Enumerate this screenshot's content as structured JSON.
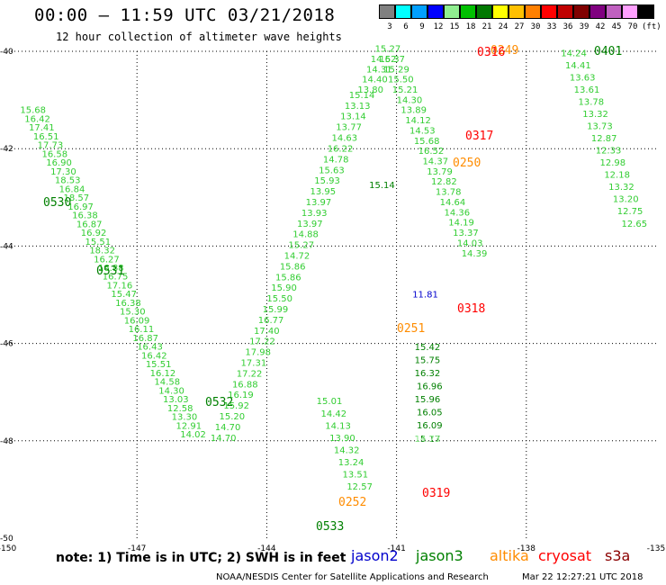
{
  "header": {
    "title": "00:00 – 11:59 UTC 03/21/2018",
    "subtitle": "12 hour collection of altimeter wave heights"
  },
  "legend": {
    "unit": "(ft)",
    "bins": [
      {
        "label": "3",
        "color": "#808080"
      },
      {
        "label": "6",
        "color": "#00ffff"
      },
      {
        "label": "9",
        "color": "#00a0ff"
      },
      {
        "label": "12",
        "color": "#0000ff"
      },
      {
        "label": "15",
        "color": "#90ee90"
      },
      {
        "label": "18",
        "color": "#00c000"
      },
      {
        "label": "21",
        "color": "#007800"
      },
      {
        "label": "24",
        "color": "#ffff00"
      },
      {
        "label": "27",
        "color": "#ffc000"
      },
      {
        "label": "30",
        "color": "#ff8000"
      },
      {
        "label": "33",
        "color": "#ff0000"
      },
      {
        "label": "36",
        "color": "#c00000"
      },
      {
        "label": "39",
        "color": "#800000"
      },
      {
        "label": "42",
        "color": "#800080"
      },
      {
        "label": "45",
        "color": "#c060c0"
      },
      {
        "label": "70",
        "color": "#ffa0ff"
      },
      {
        "label": "",
        "color": "#000000"
      }
    ]
  },
  "map": {
    "lat_ticks": [
      "-40",
      "-42",
      "-44",
      "-46",
      "-48",
      "-50"
    ],
    "lon_ticks": [
      "-150",
      "-147",
      "-144",
      "-141",
      "-138",
      "-135"
    ],
    "lon_range": [
      -150,
      -135
    ],
    "lat_range": [
      -50,
      -40
    ]
  },
  "tracks": [
    {
      "name": "left-descending",
      "color": "#32cd32",
      "points": [
        [
          "15.68",
          -149.7,
          -41.27
        ],
        [
          "16.42",
          -149.6,
          -41.45
        ],
        [
          "17.41",
          -149.5,
          -41.63
        ],
        [
          "16.51",
          -149.4,
          -41.81
        ],
        [
          "17.73",
          -149.3,
          -41.99
        ],
        [
          "16.58",
          -149.2,
          -42.17
        ],
        [
          "16.90",
          -149.1,
          -42.35
        ],
        [
          "17.30",
          -149.0,
          -42.53
        ],
        [
          "18.53",
          -148.9,
          -42.71
        ],
        [
          "16.84",
          -148.8,
          -42.89
        ],
        [
          "18.57",
          -148.7,
          -43.07
        ],
        [
          "16.97",
          -148.6,
          -43.25
        ],
        [
          "16.38",
          -148.5,
          -43.43
        ],
        [
          "16.87",
          -148.4,
          -43.61
        ],
        [
          "16.92",
          -148.3,
          -43.79
        ],
        [
          "15.51",
          -148.2,
          -43.97
        ],
        [
          "18.32",
          -148.1,
          -44.15
        ],
        [
          "16.27",
          -148.0,
          -44.33
        ],
        [
          "16.88",
          -147.9,
          -44.51
        ],
        [
          "16.75",
          -147.8,
          -44.69
        ],
        [
          "17.16",
          -147.7,
          -44.87
        ],
        [
          "15.47",
          -147.6,
          -45.05
        ],
        [
          "16.38",
          -147.5,
          -45.23
        ],
        [
          "15.30",
          -147.4,
          -45.41
        ],
        [
          "16.09",
          -147.3,
          -45.59
        ],
        [
          "16.11",
          -147.2,
          -45.77
        ],
        [
          "16.87",
          -147.1,
          -45.95
        ],
        [
          "16.43",
          -147.0,
          -46.13
        ],
        [
          "16.42",
          -146.9,
          -46.31
        ],
        [
          "15.51",
          -146.8,
          -46.49
        ],
        [
          "16.12",
          -146.7,
          -46.67
        ],
        [
          "14.58",
          -146.6,
          -46.85
        ],
        [
          "14.30",
          -146.5,
          -47.03
        ],
        [
          "13.03",
          -146.4,
          -47.21
        ],
        [
          "12.58",
          -146.3,
          -47.39
        ],
        [
          "13.30",
          -146.2,
          -47.57
        ],
        [
          "12.91",
          -146.1,
          -47.75
        ],
        [
          "14.02",
          -146.0,
          -47.93
        ]
      ]
    },
    {
      "name": "center-ascending",
      "color": "#32cd32",
      "points": [
        [
          "14.70",
          -145.3,
          -48.0
        ],
        [
          "14.70",
          -145.2,
          -47.78
        ],
        [
          "15.20",
          -145.1,
          -47.56
        ],
        [
          "15.92",
          -145.0,
          -47.34
        ],
        [
          "16.19",
          -144.9,
          -47.12
        ],
        [
          "16.88",
          -144.8,
          -46.9
        ],
        [
          "17.22",
          -144.7,
          -46.68
        ],
        [
          "17.31",
          -144.6,
          -46.46
        ],
        [
          "17.98",
          -144.5,
          -46.24
        ],
        [
          "17.22",
          -144.4,
          -46.02
        ],
        [
          "17.40",
          -144.3,
          -45.8
        ],
        [
          "16.77",
          -144.2,
          -45.58
        ],
        [
          "15.99",
          -144.1,
          -45.36
        ],
        [
          "15.50",
          -144.0,
          -45.14
        ],
        [
          "15.90",
          -143.9,
          -44.92
        ],
        [
          "15.86",
          -143.8,
          -44.7
        ],
        [
          "15.86",
          -143.7,
          -44.48
        ],
        [
          "14.72",
          -143.6,
          -44.26
        ],
        [
          "15.27",
          -143.5,
          -44.04
        ],
        [
          "14.88",
          -143.4,
          -43.82
        ],
        [
          "13.97",
          -143.3,
          -43.6
        ],
        [
          "13.93",
          -143.2,
          -43.38
        ],
        [
          "13.97",
          -143.1,
          -43.16
        ],
        [
          "13.95",
          -143.0,
          -42.94
        ],
        [
          "15.93",
          -142.9,
          -42.72
        ],
        [
          "15.63",
          -142.8,
          -42.5
        ],
        [
          "14.78",
          -142.7,
          -42.28
        ],
        [
          "16.22",
          -142.6,
          -42.06
        ],
        [
          "14.63",
          -142.5,
          -41.84
        ],
        [
          "13.77",
          -142.4,
          -41.62
        ],
        [
          "13.14",
          -142.3,
          -41.4
        ],
        [
          "13.13",
          -142.2,
          -41.18
        ],
        [
          "15.14",
          -142.1,
          -40.96
        ]
      ]
    },
    {
      "name": "right-near-track",
      "color": "#32cd32",
      "points": [
        [
          "13.80",
          -141.9,
          -40.85
        ],
        [
          "14.40",
          -141.8,
          -40.64
        ],
        [
          "14.31",
          -141.7,
          -40.43
        ],
        [
          "14.62",
          -141.6,
          -40.22
        ],
        [
          "15.27",
          -141.5,
          -40.01
        ],
        [
          "15.37",
          -141.4,
          -40.22
        ],
        [
          "15.29",
          -141.3,
          -40.43
        ],
        [
          "15.50",
          -141.2,
          -40.64
        ],
        [
          "15.21",
          -141.1,
          -40.85
        ],
        [
          "14.30",
          -141.0,
          -41.06
        ],
        [
          "13.89",
          -140.9,
          -41.27
        ],
        [
          "14.12",
          -140.8,
          -41.48
        ],
        [
          "14.53",
          -140.7,
          -41.69
        ],
        [
          "15.68",
          -140.6,
          -41.9
        ],
        [
          "16.52",
          -140.5,
          -42.11
        ],
        [
          "14.37",
          -140.4,
          -42.32
        ],
        [
          "13.79",
          -140.3,
          -42.53
        ],
        [
          "12.82",
          -140.2,
          -42.74
        ],
        [
          "13.78",
          -140.1,
          -42.95
        ],
        [
          "14.64",
          -140.0,
          -43.16
        ],
        [
          "14.36",
          -139.9,
          -43.37
        ],
        [
          "14.19",
          -139.8,
          -43.58
        ],
        [
          "13.37",
          -139.7,
          -43.79
        ],
        [
          "14.03",
          -139.6,
          -44.0
        ],
        [
          "14.39",
          -139.5,
          -44.21
        ]
      ]
    },
    {
      "name": "right-lower",
      "color": "#32cd32",
      "points": [
        [
          "15.01",
          -142.85,
          -47.25
        ],
        [
          "14.42",
          -142.75,
          -47.5
        ],
        [
          "14.13",
          -142.65,
          -47.75
        ],
        [
          "13.90",
          -142.55,
          -48.0
        ],
        [
          "14.32",
          -142.45,
          -48.25
        ],
        [
          "13.24",
          -142.35,
          -48.5
        ],
        [
          "13.51",
          -142.25,
          -48.75
        ],
        [
          "12.57",
          -142.15,
          -49.0
        ]
      ]
    },
    {
      "name": "right-upper",
      "color": "#32cd32",
      "points": [
        [
          "14.24",
          -137.2,
          -40.1
        ],
        [
          "14.41",
          -137.1,
          -40.35
        ],
        [
          "13.63",
          -137.0,
          -40.6
        ],
        [
          "13.61",
          -136.9,
          -40.85
        ],
        [
          "13.78",
          -136.8,
          -41.1
        ],
        [
          "13.32",
          -136.7,
          -41.35
        ],
        [
          "13.73",
          -136.6,
          -41.6
        ],
        [
          "12.87",
          -136.5,
          -41.85
        ],
        [
          "12.33",
          -136.4,
          -42.1
        ],
        [
          "12.98",
          -136.3,
          -42.35
        ],
        [
          "12.18",
          -136.2,
          -42.6
        ],
        [
          "13.32",
          -136.1,
          -42.85
        ],
        [
          "13.20",
          -136.0,
          -43.1
        ],
        [
          "12.75",
          -135.9,
          -43.35
        ],
        [
          "12.65",
          -135.8,
          -43.6
        ]
      ]
    }
  ],
  "highlight_values": [
    {
      "text": "11.81",
      "color": "#0000cc"
    },
    {
      "text": "15.75",
      "color": "#008000"
    },
    {
      "text": "15.42",
      "color": "#008000"
    },
    {
      "text": "16.32",
      "color": "#008000"
    },
    {
      "text": "16.96",
      "color": "#008000"
    },
    {
      "text": "15.96",
      "color": "#008000"
    },
    {
      "text": "16.05",
      "color": "#008000"
    },
    {
      "text": "16.09",
      "color": "#008000"
    },
    {
      "text": "15.17",
      "color": "#008000"
    },
    {
      "text": "14.73",
      "color": "#90ee90"
    },
    {
      "text": "15.14",
      "color": "#008000"
    }
  ],
  "track_labels": [
    {
      "text": "0530",
      "color": "#008000"
    },
    {
      "text": "0531",
      "color": "#008000"
    },
    {
      "text": "0532",
      "color": "#008000"
    },
    {
      "text": "0533",
      "color": "#008000"
    },
    {
      "text": "0252",
      "color": "#ff8c00"
    },
    {
      "text": "0251",
      "color": "#ff8c00"
    },
    {
      "text": "0250",
      "color": "#ff8c00"
    },
    {
      "text": "0249",
      "color": "#ff8c00"
    },
    {
      "text": "0316",
      "color": "#ff0000"
    },
    {
      "text": "0317",
      "color": "#ff0000"
    },
    {
      "text": "0318",
      "color": "#ff0000"
    },
    {
      "text": "0319",
      "color": "#ff0000"
    },
    {
      "text": "0401",
      "color": "#008000"
    }
  ],
  "footer": {
    "note": "note: 1) Time is in UTC; 2) SWH is in feet",
    "satellites": [
      {
        "name": "jason2",
        "color": "#0000cc"
      },
      {
        "name": "jason3",
        "color": "#008000"
      },
      {
        "name": "altika",
        "color": "#ff8c00"
      },
      {
        "name": "cryosat",
        "color": "#ff0000"
      },
      {
        "name": "s3a",
        "color": "#8b0000"
      }
    ],
    "credit": "NOAA/NESDIS Center for Satellite Applications and Research",
    "timestamp": "Mar 22 12:27:21 UTC 2018"
  }
}
